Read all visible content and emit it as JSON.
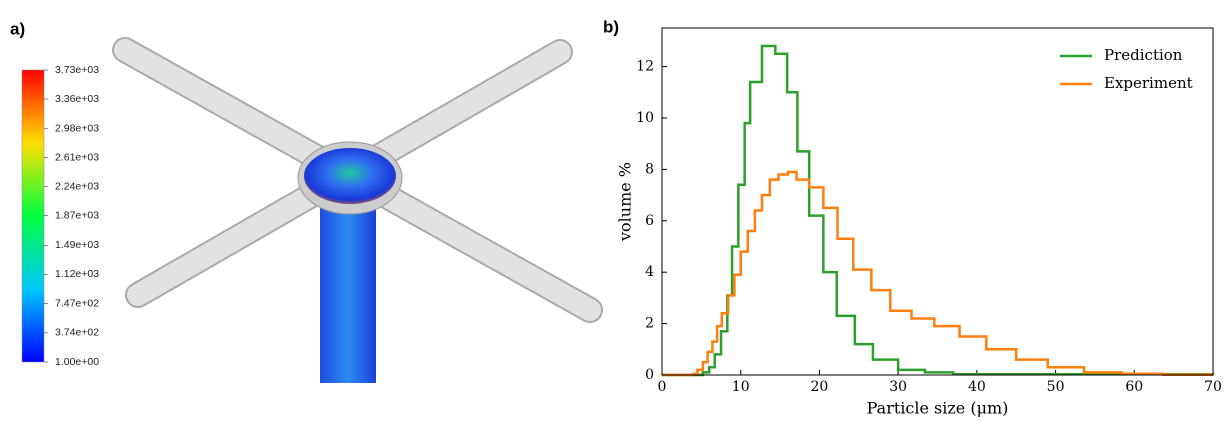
{
  "chart_data": [
    {
      "type": "colorbar",
      "title": "a)",
      "clim": [
        1,
        3730
      ],
      "ticks": [
        {
          "value": 3730,
          "label": "3.73e+03"
        },
        {
          "value": 3360,
          "label": "3.36e+03"
        },
        {
          "value": 2980,
          "label": "2.98e+03"
        },
        {
          "value": 2610,
          "label": "2.61e+03"
        },
        {
          "value": 2240,
          "label": "2.24e+03"
        },
        {
          "value": 1870,
          "label": "1.87e+03"
        },
        {
          "value": 1490,
          "label": "1.49e+03"
        },
        {
          "value": 1120,
          "label": "1.12e+03"
        },
        {
          "value": 747,
          "label": "7.47e+02"
        },
        {
          "value": 374,
          "label": "3.74e+02"
        },
        {
          "value": 1,
          "label": "1.00e+00"
        }
      ]
    },
    {
      "type": "step",
      "title": "b)",
      "xlabel": "Particle size (μm)",
      "ylabel": "volume %",
      "xlim": [
        0,
        70
      ],
      "ylim": [
        0,
        13.5
      ],
      "xticks": [
        0,
        10,
        20,
        30,
        40,
        50,
        60,
        70
      ],
      "yticks": [
        0,
        2,
        4,
        6,
        8,
        10,
        12
      ],
      "legend": "upper right",
      "series": [
        {
          "name": "Prediction",
          "color": "#2ca02c",
          "x": [
            0,
            5.2,
            6,
            6.7,
            7.5,
            8.3,
            8.9,
            9.7,
            10.5,
            11.2,
            12.7,
            14.4,
            15.9,
            17.2,
            18.7,
            20.5,
            22.2,
            24.5,
            26.8,
            30,
            33.4,
            37,
            70
          ],
          "values": [
            0,
            0.1,
            0.3,
            0.8,
            1.7,
            3.1,
            5.0,
            7.4,
            9.8,
            11.4,
            12.8,
            12.5,
            11.0,
            8.7,
            6.2,
            4.0,
            2.3,
            1.2,
            0.6,
            0.2,
            0.1,
            0.03,
            0
          ]
        },
        {
          "name": "Experiment",
          "color": "#ff7f0e",
          "x": [
            0,
            4,
            4.5,
            5.2,
            5.8,
            6.4,
            7,
            7.6,
            8.4,
            9.2,
            10,
            10.9,
            11.8,
            12.7,
            13.7,
            14.8,
            16,
            17.1,
            18.7,
            20.5,
            22.3,
            24.3,
            26.6,
            29,
            31.7,
            34.6,
            37.8,
            41.2,
            45,
            49,
            53.6,
            58.4,
            63.7,
            70
          ],
          "values": [
            0,
            0.05,
            0.2,
            0.5,
            0.9,
            1.3,
            1.9,
            2.4,
            3.1,
            3.9,
            4.8,
            5.6,
            6.4,
            7.0,
            7.6,
            7.8,
            7.9,
            7.6,
            7.3,
            6.5,
            5.3,
            4.1,
            3.3,
            2.5,
            2.2,
            1.9,
            1.5,
            1.0,
            0.6,
            0.3,
            0.1,
            0.05,
            0.01,
            0
          ]
        }
      ]
    }
  ]
}
